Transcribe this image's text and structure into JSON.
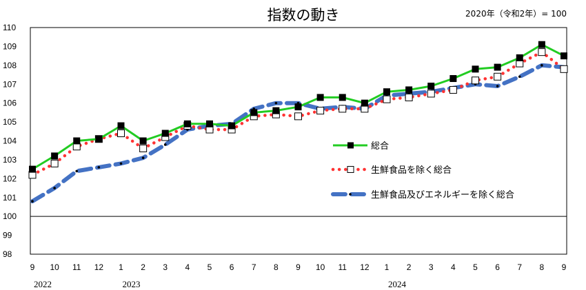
{
  "chart_data": {
    "type": "line",
    "title": "指数の動き",
    "note": "2020年（令和2年）= 100",
    "xlabel": "",
    "ylabel": "",
    "ylim": [
      98,
      110
    ],
    "yticks": [
      "98",
      "99",
      "100",
      "101",
      "102",
      "103",
      "104",
      "105",
      "106",
      "107",
      "108",
      "109",
      "110"
    ],
    "reference_line": 100,
    "categories": [
      "9",
      "10",
      "11",
      "12",
      "1",
      "2",
      "3",
      "4",
      "5",
      "6",
      "7",
      "8",
      "9",
      "10",
      "11",
      "12",
      "1",
      "2",
      "3",
      "4",
      "5",
      "6",
      "7",
      "8",
      "9"
    ],
    "year_labels": [
      {
        "label": "2022",
        "index": 0
      },
      {
        "label": "2023",
        "index": 4
      },
      {
        "label": "2024",
        "index": 16
      }
    ],
    "series": [
      {
        "name": "総合",
        "color": "#22cc22",
        "marker": "filled-square",
        "values": [
          102.5,
          103.2,
          104.0,
          104.1,
          104.8,
          104.0,
          104.4,
          104.9,
          104.9,
          104.8,
          105.5,
          105.6,
          105.8,
          106.3,
          106.3,
          106.0,
          106.6,
          106.7,
          106.9,
          107.3,
          107.8,
          107.9,
          108.4,
          109.1,
          108.5
        ]
      },
      {
        "name": "生鮮食品を除く総合",
        "color": "#ff3333",
        "marker": "open-square",
        "values": [
          102.2,
          102.8,
          103.7,
          104.1,
          104.4,
          103.6,
          104.2,
          104.8,
          104.6,
          104.6,
          105.3,
          105.4,
          105.3,
          105.6,
          105.7,
          105.7,
          106.2,
          106.3,
          106.5,
          106.7,
          107.2,
          107.4,
          108.1,
          108.7,
          107.8
        ]
      },
      {
        "name": "生鮮食品及びエネルギーを除く総合",
        "color": "#4472c4",
        "marker": "small-dot",
        "values": [
          100.8,
          101.5,
          102.4,
          102.6,
          102.8,
          103.1,
          103.8,
          104.6,
          104.8,
          104.9,
          105.7,
          106.0,
          106.0,
          105.7,
          105.8,
          105.7,
          106.4,
          106.5,
          106.6,
          106.8,
          107.0,
          106.9,
          107.4,
          108.0,
          107.9
        ]
      }
    ]
  }
}
